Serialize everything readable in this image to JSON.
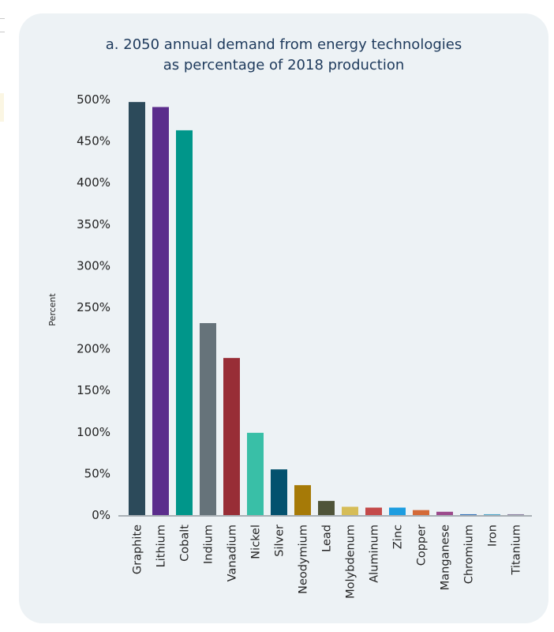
{
  "chart_data": {
    "type": "bar",
    "title": "a. 2050 annual demand from energy technologies as percentage of 2018 production",
    "title_lines": [
      "a. 2050 annual demand from energy technologies",
      "as percentage of 2018 production"
    ],
    "xlabel": "",
    "ylabel": "Percent",
    "ylim": [
      0,
      500
    ],
    "yticks": [
      0,
      50,
      100,
      150,
      200,
      250,
      300,
      350,
      400,
      450,
      500
    ],
    "ytick_labels": [
      "0%",
      "50%",
      "100%",
      "150%",
      "200%",
      "250%",
      "300%",
      "350%",
      "400%",
      "450%",
      "500%"
    ],
    "grid": false,
    "legend": "none",
    "categories": [
      "Graphite",
      "Lithium",
      "Cobalt",
      "Indium",
      "Vanadium",
      "Nickel",
      "Silver",
      "Neodymium",
      "Lead",
      "Molybdenum",
      "Aluminum",
      "Zinc",
      "Copper",
      "Manganese",
      "Chromium",
      "Iron",
      "Titanium"
    ],
    "values": [
      497,
      491,
      463,
      231,
      189,
      99,
      55,
      36,
      17,
      10,
      9,
      9,
      6,
      4,
      1,
      1,
      1
    ],
    "colors": [
      "#2c4a5a",
      "#5b2d8c",
      "#00968a",
      "#66737a",
      "#982d36",
      "#39bfa7",
      "#03516e",
      "#a67a07",
      "#4f5439",
      "#d6bd57",
      "#c44a4a",
      "#1d9de0",
      "#d46a38",
      "#9c4a8c",
      "#2f6fb5",
      "#4ba3c7",
      "#8a7fa0"
    ]
  },
  "colors": {
    "card_background": "#edf2f5",
    "title_color": "#1e3a5c",
    "axis_color": "#a9b0b5"
  }
}
